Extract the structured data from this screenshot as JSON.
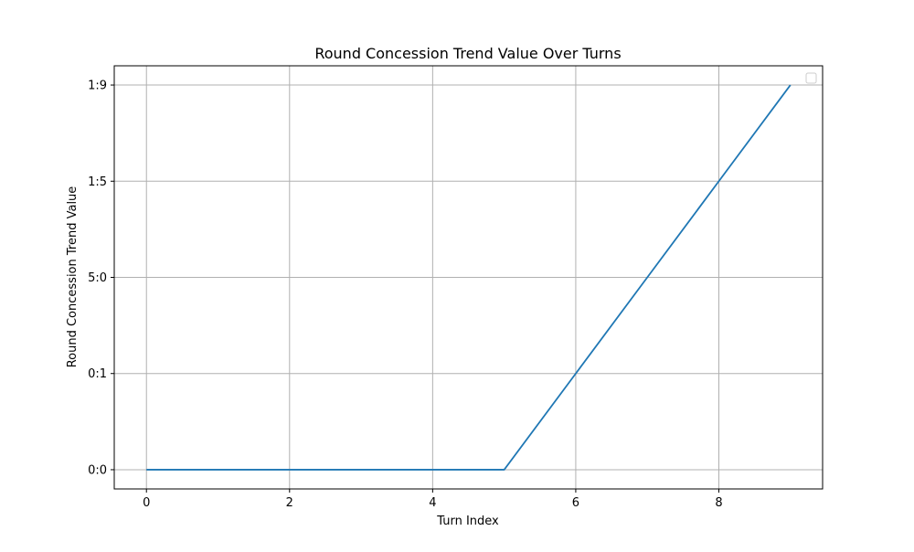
{
  "chart_data": {
    "type": "line",
    "title": "Round Concession Trend Value Over Turns",
    "xlabel": "Turn Index",
    "ylabel": "Round Concession Trend Value",
    "x": [
      0,
      1,
      2,
      3,
      4,
      5,
      6,
      7,
      8,
      9
    ],
    "y_tick_labels": [
      "0:0",
      "0:1",
      "5:0",
      "1:5",
      "1:9"
    ],
    "x_tick_labels": [
      "0",
      "2",
      "4",
      "6",
      "8"
    ],
    "x_ticks": [
      0,
      2,
      4,
      6,
      8
    ],
    "xlim": [
      -0.45,
      9.45
    ],
    "ylim": [
      -0.2,
      4.2
    ],
    "series": [
      {
        "values": [
          0,
          0,
          0,
          0,
          0,
          0,
          1,
          2,
          3,
          4
        ]
      }
    ],
    "y_scale": "categorical (values index into y_tick_labels)",
    "grid": true,
    "legend": "top-right (empty)",
    "colors": {
      "line": "#1f77b4",
      "grid": "#b0b0b0",
      "axes": "#000000",
      "background": "#ffffff"
    }
  }
}
